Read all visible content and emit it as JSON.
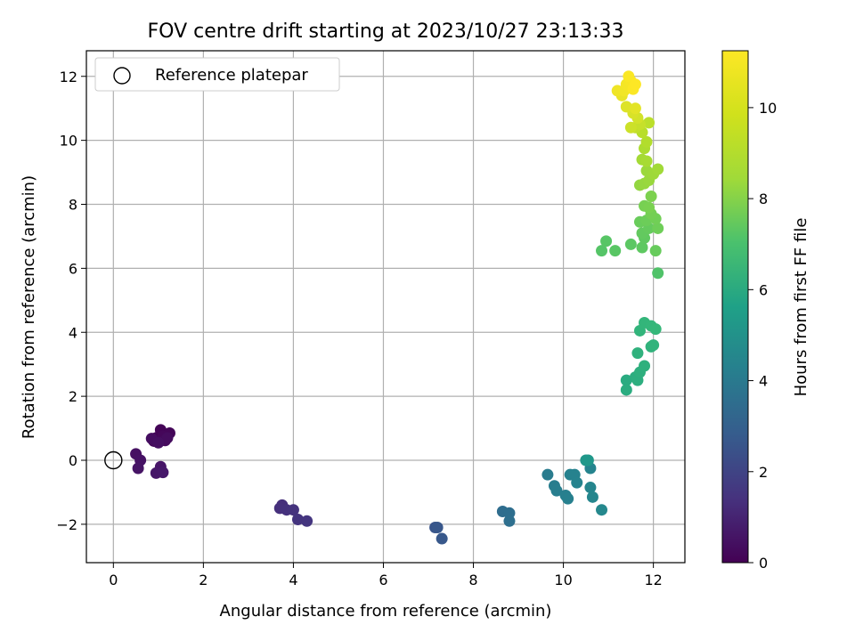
{
  "chart_data": {
    "type": "scatter",
    "title": "FOV centre drift starting at 2023/10/27 23:13:33",
    "xlabel": "Angular distance from reference (arcmin)",
    "ylabel": "Rotation from reference (arcmin)",
    "xlim": [
      -0.6,
      12.7
    ],
    "ylim": [
      -3.2,
      12.8
    ],
    "xticks": [
      0,
      2,
      4,
      6,
      8,
      10,
      12
    ],
    "yticks": [
      -2,
      0,
      2,
      4,
      6,
      8,
      10,
      12
    ],
    "grid": true,
    "legend": {
      "position": "top-left",
      "entries": [
        "Reference platepar"
      ]
    },
    "reference_point": {
      "x": 0,
      "y": 0,
      "label": "Reference platepar"
    },
    "colorbar": {
      "label": "Hours from first FF file",
      "colormap": "viridis",
      "range": [
        0,
        11.25
      ],
      "ticks": [
        0,
        2,
        4,
        6,
        8,
        10
      ]
    },
    "points": [
      {
        "x": 0.95,
        "y": 0.7,
        "t": 0.05
      },
      {
        "x": 1.05,
        "y": 0.95,
        "t": 0.1
      },
      {
        "x": 1.25,
        "y": 0.85,
        "t": 0.15
      },
      {
        "x": 1.1,
        "y": 0.75,
        "t": 0.2
      },
      {
        "x": 0.9,
        "y": 0.6,
        "t": 0.25
      },
      {
        "x": 1.15,
        "y": 0.62,
        "t": 0.3
      },
      {
        "x": 1.2,
        "y": 0.7,
        "t": 0.35
      },
      {
        "x": 0.85,
        "y": 0.68,
        "t": 0.4
      },
      {
        "x": 1.0,
        "y": 0.55,
        "t": 0.45
      },
      {
        "x": 0.5,
        "y": 0.2,
        "t": 0.5
      },
      {
        "x": 0.6,
        "y": 0.0,
        "t": 0.55
      },
      {
        "x": 0.55,
        "y": -0.25,
        "t": 0.6
      },
      {
        "x": 1.05,
        "y": -0.2,
        "t": 0.65
      },
      {
        "x": 0.95,
        "y": -0.4,
        "t": 0.7
      },
      {
        "x": 1.1,
        "y": -0.38,
        "t": 0.75
      },
      {
        "x": 3.75,
        "y": -1.4,
        "t": 1.5
      },
      {
        "x": 3.7,
        "y": -1.5,
        "t": 1.55
      },
      {
        "x": 3.85,
        "y": -1.55,
        "t": 1.6
      },
      {
        "x": 4.0,
        "y": -1.55,
        "t": 1.65
      },
      {
        "x": 4.1,
        "y": -1.85,
        "t": 1.7
      },
      {
        "x": 4.3,
        "y": -1.9,
        "t": 1.75
      },
      {
        "x": 7.15,
        "y": -2.1,
        "t": 3.0
      },
      {
        "x": 7.2,
        "y": -2.1,
        "t": 3.05
      },
      {
        "x": 7.3,
        "y": -2.45,
        "t": 3.1
      },
      {
        "x": 8.65,
        "y": -1.6,
        "t": 4.0
      },
      {
        "x": 8.8,
        "y": -1.65,
        "t": 4.05
      },
      {
        "x": 8.8,
        "y": -1.9,
        "t": 4.1
      },
      {
        "x": 9.65,
        "y": -0.45,
        "t": 4.7
      },
      {
        "x": 9.8,
        "y": -0.8,
        "t": 4.75
      },
      {
        "x": 9.85,
        "y": -0.95,
        "t": 4.8
      },
      {
        "x": 10.05,
        "y": -1.1,
        "t": 4.85
      },
      {
        "x": 10.1,
        "y": -1.2,
        "t": 4.9
      },
      {
        "x": 10.15,
        "y": -0.45,
        "t": 4.95
      },
      {
        "x": 10.25,
        "y": -0.45,
        "t": 5.0
      },
      {
        "x": 10.3,
        "y": -0.7,
        "t": 5.05
      },
      {
        "x": 10.6,
        "y": -0.25,
        "t": 5.1
      },
      {
        "x": 10.6,
        "y": -0.85,
        "t": 5.15
      },
      {
        "x": 10.65,
        "y": -1.15,
        "t": 5.2
      },
      {
        "x": 10.85,
        "y": -1.55,
        "t": 5.25
      },
      {
        "x": 10.5,
        "y": 0.0,
        "t": 5.95
      },
      {
        "x": 10.55,
        "y": 0.0,
        "t": 6.0
      },
      {
        "x": 11.4,
        "y": 2.5,
        "t": 6.9
      },
      {
        "x": 11.4,
        "y": 2.2,
        "t": 6.95
      },
      {
        "x": 11.6,
        "y": 2.6,
        "t": 7.0
      },
      {
        "x": 11.65,
        "y": 2.5,
        "t": 7.05
      },
      {
        "x": 11.7,
        "y": 2.75,
        "t": 7.1
      },
      {
        "x": 11.8,
        "y": 2.95,
        "t": 7.15
      },
      {
        "x": 11.65,
        "y": 3.35,
        "t": 7.2
      },
      {
        "x": 11.95,
        "y": 3.55,
        "t": 7.25
      },
      {
        "x": 12.0,
        "y": 3.6,
        "t": 7.3
      },
      {
        "x": 11.7,
        "y": 4.05,
        "t": 7.35
      },
      {
        "x": 11.8,
        "y": 4.3,
        "t": 7.4
      },
      {
        "x": 11.95,
        "y": 4.2,
        "t": 7.45
      },
      {
        "x": 12.05,
        "y": 4.1,
        "t": 7.5
      },
      {
        "x": 12.1,
        "y": 5.85,
        "t": 8.1
      },
      {
        "x": 10.85,
        "y": 6.55,
        "t": 8.2
      },
      {
        "x": 10.95,
        "y": 6.85,
        "t": 8.25
      },
      {
        "x": 11.15,
        "y": 6.55,
        "t": 8.3
      },
      {
        "x": 11.5,
        "y": 6.75,
        "t": 8.35
      },
      {
        "x": 11.75,
        "y": 6.65,
        "t": 8.4
      },
      {
        "x": 11.8,
        "y": 6.95,
        "t": 8.45
      },
      {
        "x": 11.75,
        "y": 7.1,
        "t": 8.5
      },
      {
        "x": 11.9,
        "y": 7.25,
        "t": 8.55
      },
      {
        "x": 12.05,
        "y": 6.55,
        "t": 8.6
      },
      {
        "x": 11.7,
        "y": 7.45,
        "t": 8.65
      },
      {
        "x": 11.85,
        "y": 7.5,
        "t": 8.7
      },
      {
        "x": 12.1,
        "y": 7.25,
        "t": 8.75
      },
      {
        "x": 12.05,
        "y": 7.55,
        "t": 8.8
      },
      {
        "x": 11.95,
        "y": 7.7,
        "t": 8.85
      },
      {
        "x": 11.8,
        "y": 7.95,
        "t": 8.9
      },
      {
        "x": 11.9,
        "y": 7.9,
        "t": 8.95
      },
      {
        "x": 11.95,
        "y": 8.25,
        "t": 9.0
      },
      {
        "x": 11.7,
        "y": 8.6,
        "t": 9.4
      },
      {
        "x": 11.8,
        "y": 8.65,
        "t": 9.45
      },
      {
        "x": 11.9,
        "y": 8.75,
        "t": 9.5
      },
      {
        "x": 11.85,
        "y": 9.05,
        "t": 9.55
      },
      {
        "x": 12.0,
        "y": 8.95,
        "t": 9.6
      },
      {
        "x": 12.1,
        "y": 9.1,
        "t": 9.65
      },
      {
        "x": 11.75,
        "y": 9.4,
        "t": 9.7
      },
      {
        "x": 11.85,
        "y": 9.35,
        "t": 9.75
      },
      {
        "x": 11.8,
        "y": 9.75,
        "t": 9.85
      },
      {
        "x": 11.85,
        "y": 9.95,
        "t": 9.95
      },
      {
        "x": 11.75,
        "y": 10.25,
        "t": 10.05
      },
      {
        "x": 11.9,
        "y": 10.55,
        "t": 10.1
      },
      {
        "x": 11.6,
        "y": 10.4,
        "t": 10.2
      },
      {
        "x": 11.7,
        "y": 10.5,
        "t": 10.3
      },
      {
        "x": 11.5,
        "y": 10.4,
        "t": 10.4
      },
      {
        "x": 11.65,
        "y": 10.7,
        "t": 10.5
      },
      {
        "x": 11.55,
        "y": 10.85,
        "t": 10.6
      },
      {
        "x": 11.4,
        "y": 11.05,
        "t": 10.7
      },
      {
        "x": 11.6,
        "y": 11.0,
        "t": 10.8
      },
      {
        "x": 11.3,
        "y": 11.4,
        "t": 10.9
      },
      {
        "x": 11.2,
        "y": 11.55,
        "t": 11.0
      },
      {
        "x": 11.35,
        "y": 11.55,
        "t": 11.05
      },
      {
        "x": 11.4,
        "y": 11.75,
        "t": 11.1
      },
      {
        "x": 11.5,
        "y": 11.85,
        "t": 11.15
      },
      {
        "x": 11.45,
        "y": 12.0,
        "t": 11.2
      },
      {
        "x": 11.55,
        "y": 11.6,
        "t": 11.22
      },
      {
        "x": 11.6,
        "y": 11.75,
        "t": 11.25
      }
    ]
  }
}
